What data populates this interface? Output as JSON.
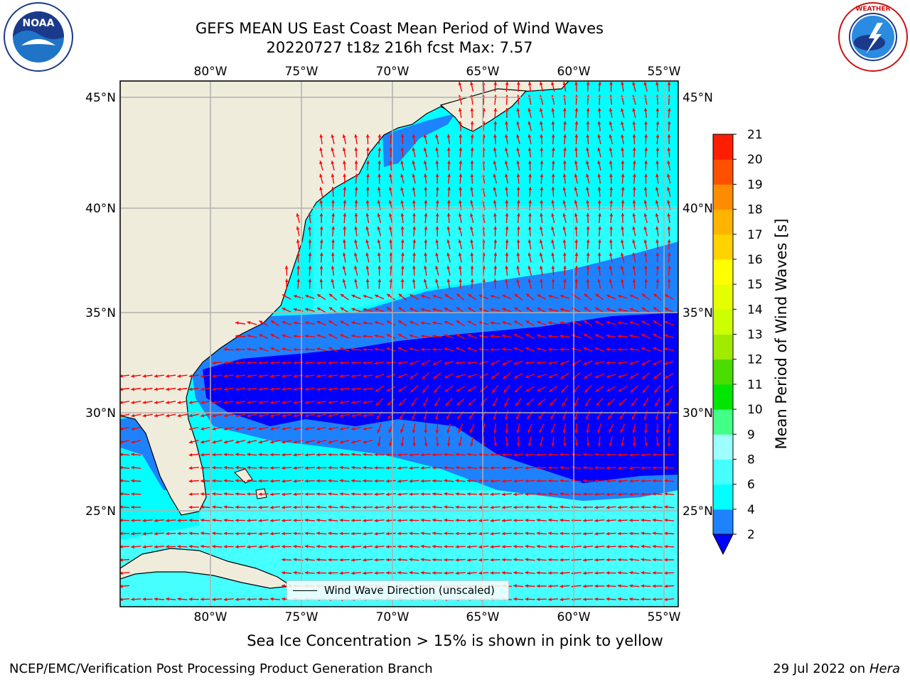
{
  "header": {
    "title_line1": "GEFS MEAN US East Coast Mean Period of Wind Waves",
    "title_line2": "20220727 t18z 216h fcst   Max: 7.57"
  },
  "logos": {
    "left": {
      "icon": "noaa-logo",
      "text": "NOAA"
    },
    "right": {
      "icon": "nws-logo",
      "text": "NATIONAL WEATHER SERVICE"
    }
  },
  "map": {
    "lon_labels": [
      "80°W",
      "75°W",
      "70°W",
      "65°W",
      "60°W",
      "55°W"
    ],
    "lat_labels": [
      "45°N",
      "40°N",
      "35°N",
      "30°N",
      "25°N"
    ],
    "land_color": "#efecdc",
    "grid_color": "#b0b0b0",
    "arrow_color": "#ff0000",
    "legend_label": "Wind Wave Direction (unscaled)"
  },
  "colorbar": {
    "label": "Mean Period of Wind Waves [s]",
    "ticks": [
      "2",
      "4",
      "6",
      "8",
      "9",
      "10",
      "11",
      "12",
      "13",
      "14",
      "15",
      "16",
      "17",
      "18",
      "19",
      "20",
      "21"
    ],
    "colors": [
      "#0000ff",
      "#1e82ff",
      "#00ffff",
      "#46ffff",
      "#9effff",
      "#41ff87",
      "#00e600",
      "#4bdc00",
      "#a0eb00",
      "#ccff00",
      "#e6ff00",
      "#ffff00",
      "#ffd200",
      "#ffb400",
      "#ff8c00",
      "#ff5000",
      "#ff1e00",
      "#ff0000"
    ]
  },
  "subtitle": "Sea Ice Concentration > 15% is shown in pink to yellow",
  "footer": {
    "left": "NCEP/EMC/Verification Post Processing Product Generation Branch",
    "date": "29 Jul 2022 on ",
    "machine": "Hera"
  }
}
